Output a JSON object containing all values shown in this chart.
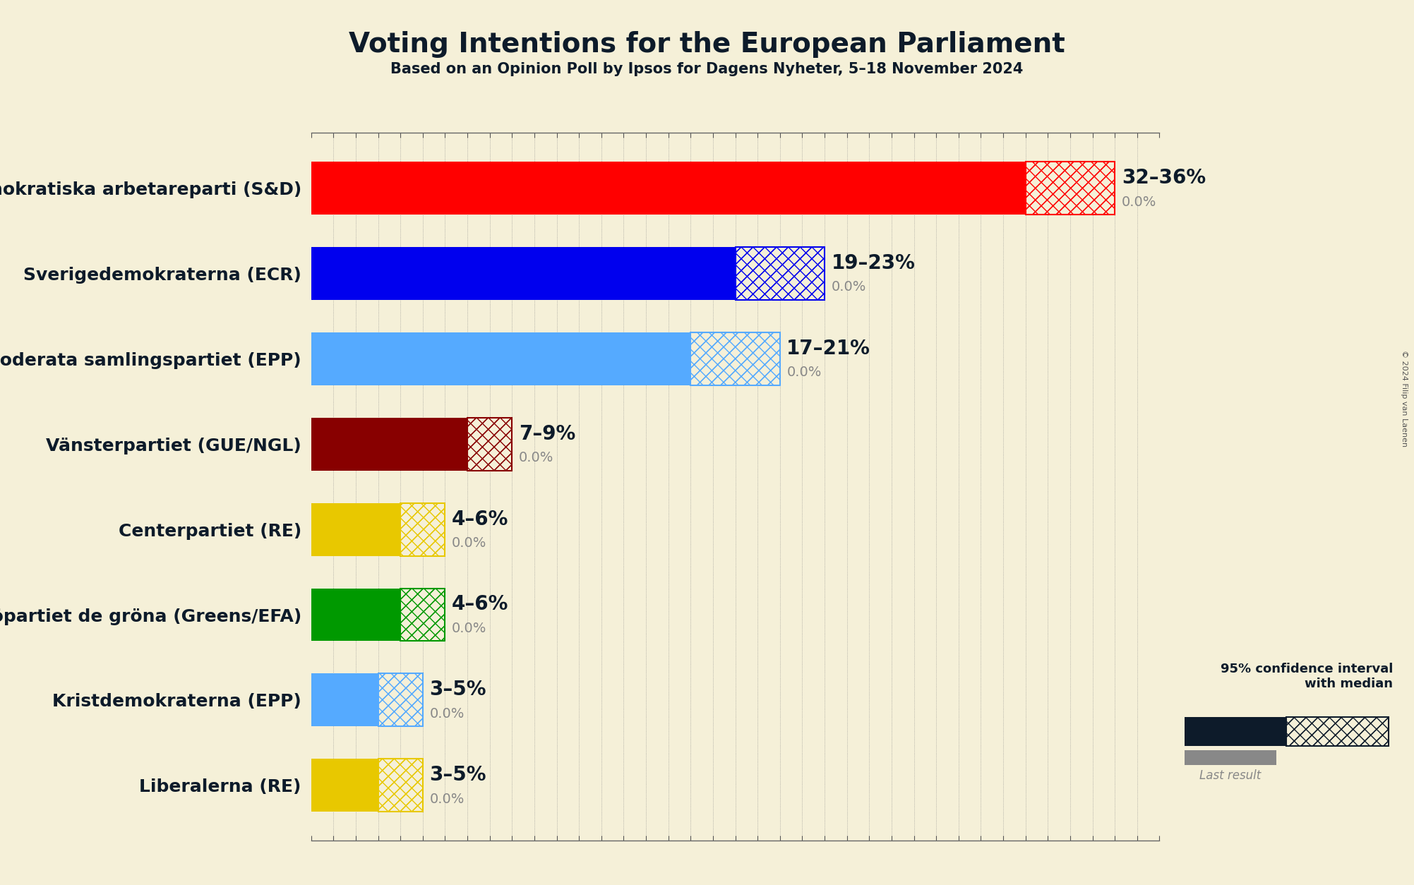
{
  "title": "Voting Intentions for the European Parliament",
  "subtitle": "Based on an Opinion Poll by Ipsos for Dagens Nyheter, 5–18 November 2024",
  "copyright": "© 2024 Filip van Laenen",
  "background_color": "#f5f0d8",
  "parties": [
    {
      "name": "Sveriges socialdemokratiska arbetareparti (S&D)",
      "low": 32,
      "high": 36,
      "last": 0.0,
      "color": "#FF0000"
    },
    {
      "name": "Sverigedemokraterna (ECR)",
      "low": 19,
      "high": 23,
      "last": 0.0,
      "color": "#0000EE"
    },
    {
      "name": "Moderata samlingspartiet (EPP)",
      "low": 17,
      "high": 21,
      "last": 0.0,
      "color": "#55AAFF"
    },
    {
      "name": "Vänsterpartiet (GUE/NGL)",
      "low": 7,
      "high": 9,
      "last": 0.0,
      "color": "#880000"
    },
    {
      "name": "Centerpartiet (RE)",
      "low": 4,
      "high": 6,
      "last": 0.0,
      "color": "#E8C800"
    },
    {
      "name": "Miljöpartiet de gröna (Greens/EFA)",
      "low": 4,
      "high": 6,
      "last": 0.0,
      "color": "#009900"
    },
    {
      "name": "Kristdemokraterna (EPP)",
      "low": 3,
      "high": 5,
      "last": 0.0,
      "color": "#55AAFF"
    },
    {
      "name": "Liberalerna (RE)",
      "low": 3,
      "high": 5,
      "last": 0.0,
      "color": "#E8C800"
    }
  ],
  "xlim_max": 38,
  "bar_height": 0.62,
  "title_fontsize": 28,
  "subtitle_fontsize": 15,
  "label_fontsize": 18,
  "value_fontsize": 20,
  "small_fontsize": 14,
  "grid_color": "#888888",
  "last_result_color": "#888888",
  "legend_dark_color": "#0D1B2A",
  "title_color": "#0D1B2A",
  "copyright_color": "#555555"
}
